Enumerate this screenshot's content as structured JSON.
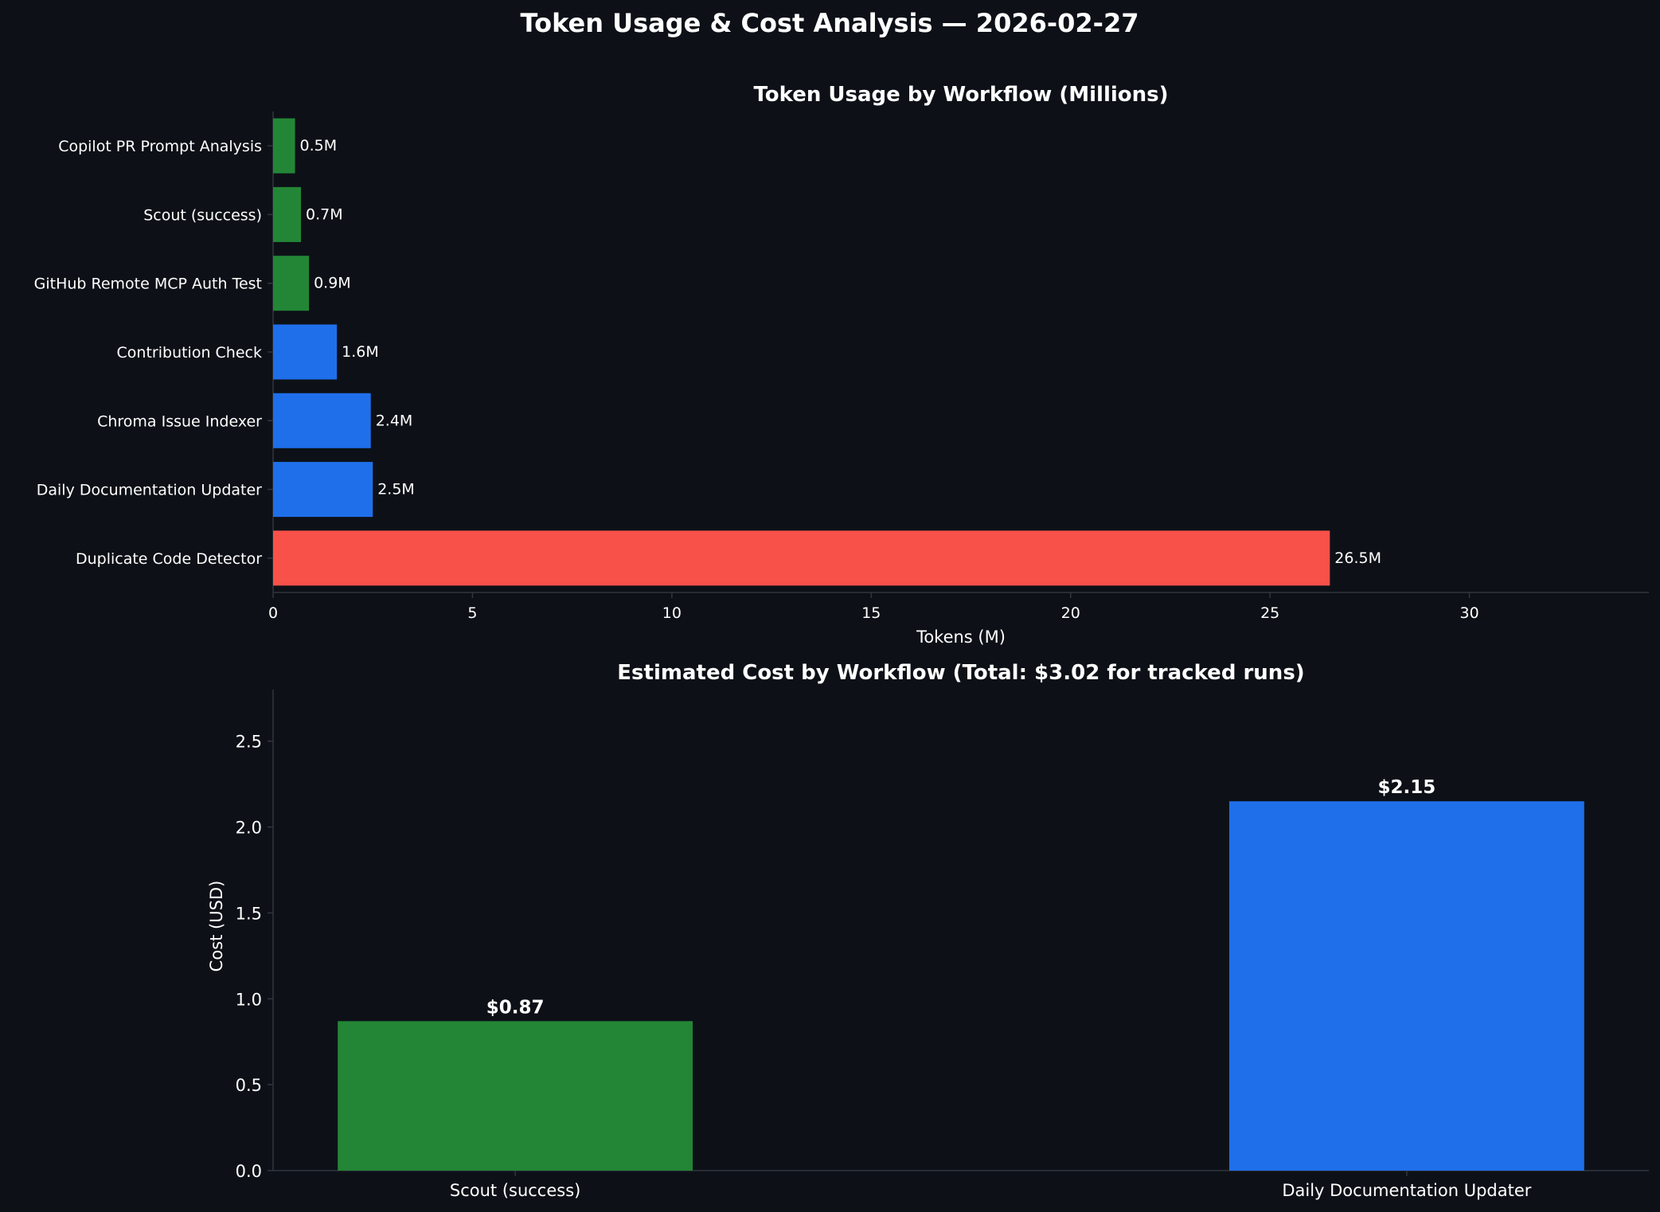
{
  "figure": {
    "title": "Token Usage & Cost Analysis — 2026-02-27",
    "background": "#0d1117",
    "text_color": "#ffffff",
    "axis_color": "#30363d"
  },
  "chart_data": [
    {
      "type": "bar",
      "orientation": "horizontal",
      "title": "Token Usage by Workflow (Millions)",
      "xlabel": "Tokens (M)",
      "ylabel": "",
      "xlim": [
        0,
        34.5
      ],
      "xticks": [
        0,
        5,
        10,
        15,
        20,
        25,
        30
      ],
      "grid": false,
      "categories": [
        "Copilot PR Prompt Analysis",
        "Scout (success)",
        "GitHub Remote MCP Auth Test",
        "Contribution Check",
        "Chroma Issue Indexer",
        "Daily Documentation Updater",
        "Duplicate Code Detector"
      ],
      "values": [
        0.55,
        0.7,
        0.9,
        1.6,
        2.45,
        2.5,
        26.5
      ],
      "data_labels": [
        "0.5M",
        "0.7M",
        "0.9M",
        "1.6M",
        "2.4M",
        "2.5M",
        "26.5M"
      ],
      "colors": [
        "#238636",
        "#238636",
        "#238636",
        "#1f6feb",
        "#1f6feb",
        "#1f6feb",
        "#f85149"
      ]
    },
    {
      "type": "bar",
      "orientation": "vertical",
      "title": "Estimated Cost by Workflow (Total: $3.02 for tracked runs)",
      "xlabel": "",
      "ylabel": "Cost (USD)",
      "ylim": [
        0,
        2.8
      ],
      "yticks": [
        "0.0",
        "0.5",
        "1.0",
        "1.5",
        "2.0",
        "2.5"
      ],
      "grid": false,
      "categories": [
        "Scout (success)",
        "Daily Documentation Updater"
      ],
      "values": [
        0.87,
        2.15
      ],
      "data_labels": [
        "$0.87",
        "$2.15"
      ],
      "colors": [
        "#238636",
        "#1f6feb"
      ]
    }
  ]
}
